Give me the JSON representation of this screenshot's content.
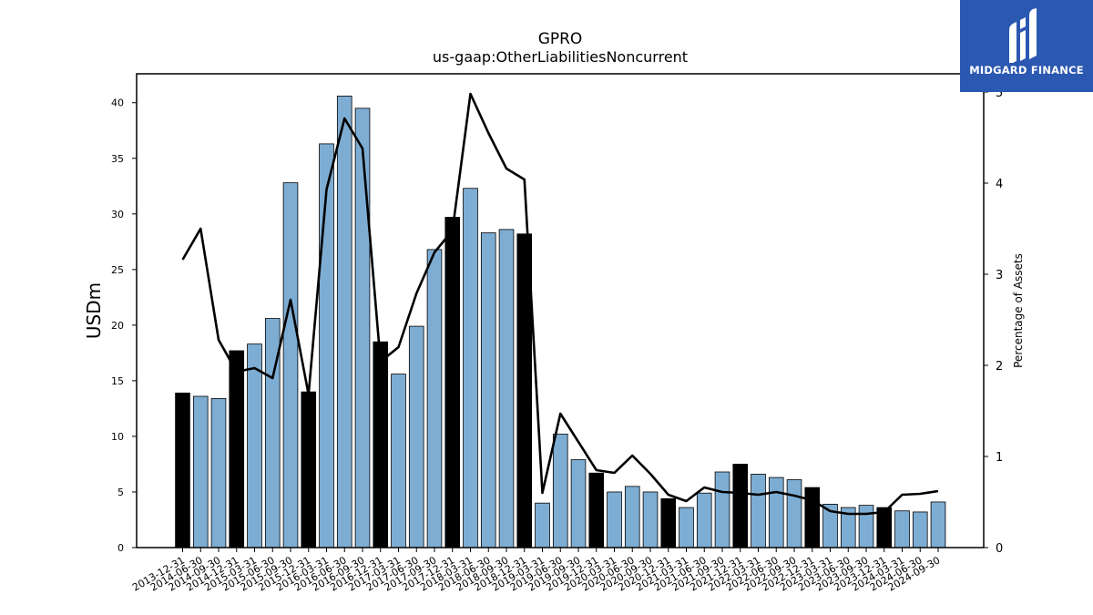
{
  "brand": {
    "name": "MIDGARD FINANCE"
  },
  "chart_data": {
    "type": "bar",
    "title": "GPRO",
    "subtitle": "us-gaap:OtherLiabilitiesNoncurrent",
    "ylabel": "USDm",
    "y2label": "Percentage of Assets",
    "ylim": [
      0,
      42.6
    ],
    "y2lim": [
      0,
      5.2
    ],
    "yticks": [
      0,
      5,
      10,
      15,
      20,
      25,
      30,
      35,
      40
    ],
    "y2ticks": [
      0,
      1,
      2,
      3,
      4,
      5
    ],
    "colors": {
      "bar": "#7eadd3",
      "bar_highlight": "#000000",
      "line": "#000000"
    },
    "categories": [
      "2013-12-31",
      "2014-06-30",
      "2014-09-30",
      "2014-12-31",
      "2015-03-31",
      "2015-06-30",
      "2015-09-30",
      "2015-12-31",
      "2016-03-31",
      "2016-06-30",
      "2016-09-30",
      "2016-12-31",
      "2017-03-31",
      "2017-06-30",
      "2017-09-30",
      "2017-12-31",
      "2018-03-31",
      "2018-06-30",
      "2018-09-30",
      "2018-12-31",
      "2019-03-31",
      "2019-06-30",
      "2019-09-30",
      "2019-12-31",
      "2020-03-31",
      "2020-06-30",
      "2020-09-30",
      "2020-12-31",
      "2021-03-31",
      "2021-06-30",
      "2021-09-30",
      "2021-12-31",
      "2022-03-31",
      "2022-06-30",
      "2022-09-30",
      "2022-12-31",
      "2023-03-31",
      "2023-06-30",
      "2023-09-30",
      "2023-12-31",
      "2024-03-31",
      "2024-06-30",
      "2024-09-30"
    ],
    "series": [
      {
        "axis": "left",
        "values": [
          13.9,
          13.6,
          13.4,
          17.7,
          18.3,
          20.6,
          32.8,
          14.0,
          36.3,
          40.6,
          39.5,
          18.5,
          15.6,
          19.9,
          26.8,
          29.7,
          32.3,
          28.3,
          28.6,
          28.2,
          4.0,
          10.2,
          7.9,
          6.7,
          5.0,
          5.5,
          5.0,
          4.4,
          3.6,
          4.9,
          6.8,
          7.5,
          6.6,
          6.3,
          6.1,
          5.4,
          3.9,
          3.6,
          3.8,
          3.6,
          3.3,
          3.2,
          4.1
        ],
        "highlight": [
          true,
          false,
          false,
          true,
          false,
          false,
          false,
          true,
          false,
          false,
          false,
          true,
          false,
          false,
          false,
          true,
          false,
          false,
          false,
          true,
          false,
          false,
          false,
          true,
          false,
          false,
          false,
          true,
          false,
          false,
          false,
          true,
          false,
          false,
          false,
          true,
          false,
          false,
          false,
          true,
          false,
          false,
          false
        ]
      },
      {
        "axis": "right",
        "type": "line",
        "values": [
          3.16,
          3.5,
          2.28,
          1.93,
          1.97,
          1.86,
          2.72,
          1.68,
          3.93,
          4.71,
          4.38,
          2.04,
          2.2,
          2.79,
          3.24,
          3.48,
          4.98,
          4.55,
          4.16,
          4.04,
          0.6,
          1.47,
          1.16,
          0.85,
          0.82,
          1.01,
          0.81,
          0.58,
          0.51,
          0.66,
          0.61,
          0.6,
          0.58,
          0.61,
          0.57,
          0.52,
          0.4,
          0.37,
          0.37,
          0.39,
          0.58,
          0.59,
          0.62
        ]
      }
    ]
  }
}
